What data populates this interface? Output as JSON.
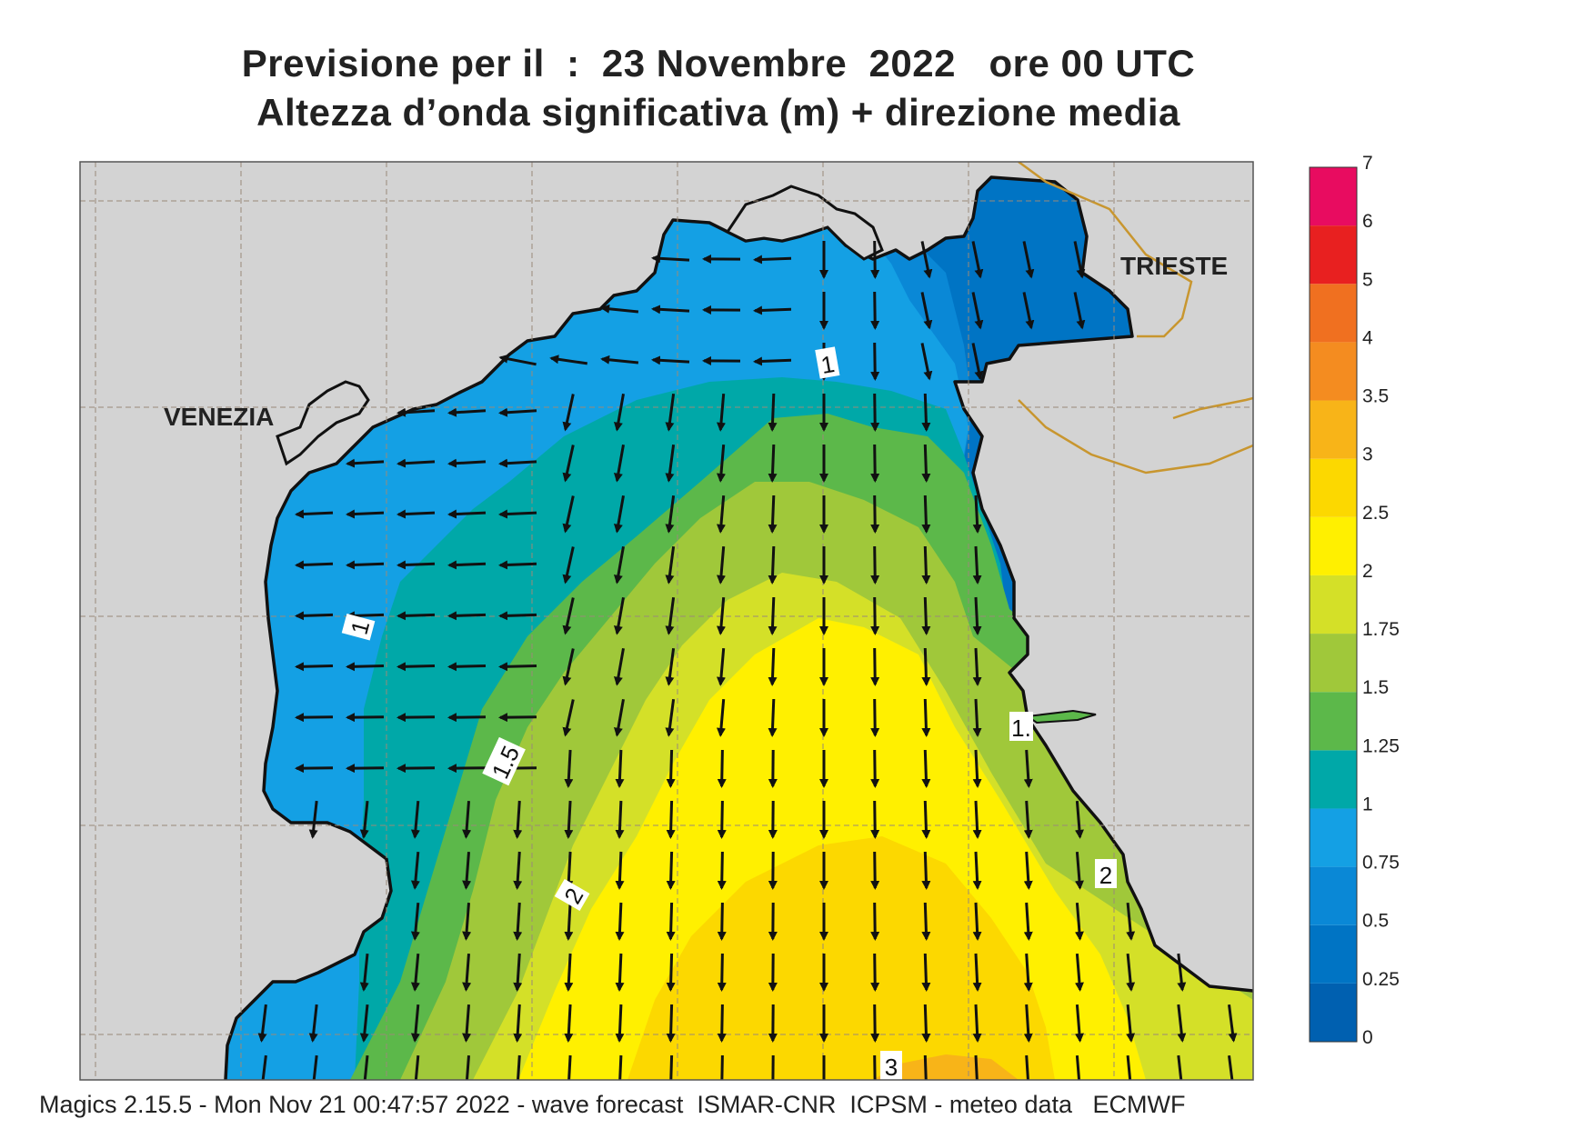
{
  "title": {
    "line1": "Previsione per il  :  23 Novembre  2022   ore 00 UTC",
    "line2": "Altezza d’onda significativa (m) + direzione media"
  },
  "map": {
    "places": [
      "VENEZIA",
      "TRIESTE"
    ],
    "contour_labels": [
      "1",
      "1",
      "1.",
      "1.5",
      "2",
      "2",
      "3"
    ],
    "land_color": "#d3d3d3",
    "coast_color": "#111111",
    "border_color": "#c8962f",
    "grid_color": "#9a8a78",
    "arrow_color": "#111111"
  },
  "legend": {
    "levels": [
      "0",
      "0.25",
      "0.5",
      "0.75",
      "1",
      "1.25",
      "1.5",
      "1.75",
      "2",
      "2.5",
      "3",
      "3.5",
      "4",
      "5",
      "6",
      "7"
    ],
    "colors": [
      "#0060b0",
      "#0074c4",
      "#0a88d6",
      "#14a0e4",
      "#00a8a8",
      "#5cb84a",
      "#a0c83a",
      "#d4e028",
      "#fff000",
      "#fcd800",
      "#f8b418",
      "#f48c20",
      "#f07020",
      "#e82020",
      "#e80c60"
    ]
  },
  "footer": {
    "text": "Magics 2.15.5 - Mon Nov 21 00:47:57 2022 - wave forecast  ISMAR-CNR  ICPSM - meteo data   ECMWF"
  }
}
